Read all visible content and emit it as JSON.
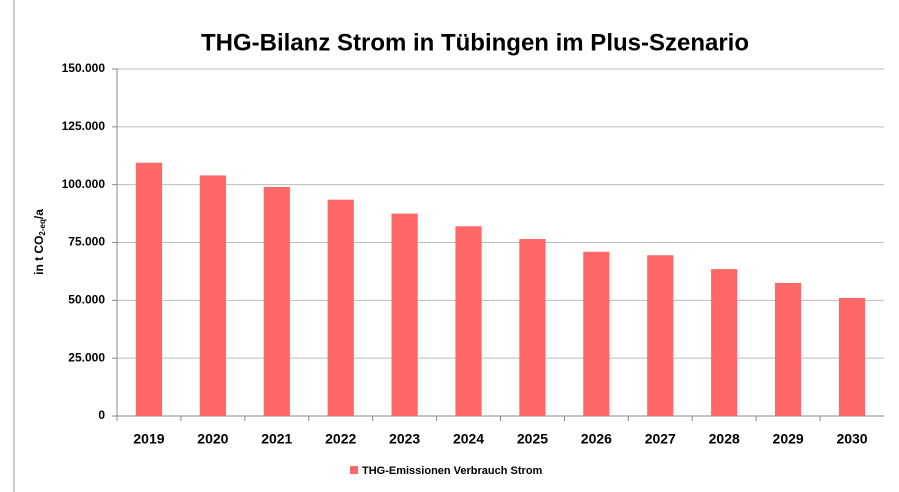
{
  "chart_data": {
    "type": "bar",
    "title": "THG-Bilanz Strom in Tübingen im Plus-Szenario",
    "y_label": {
      "main": "in t CO",
      "sub": "2-eq",
      "suffix": "/a"
    },
    "categories": [
      "2019",
      "2020",
      "2021",
      "2022",
      "2023",
      "2024",
      "2025",
      "2026",
      "2027",
      "2028",
      "2029",
      "2030"
    ],
    "series": [
      {
        "name": "THG-Emissionen Verbrauch Strom",
        "color": "#ff6666",
        "values": [
          109500,
          104000,
          99000,
          93500,
          87500,
          82000,
          76500,
          71000,
          69500,
          63500,
          57500,
          51000
        ]
      }
    ],
    "ylim": [
      0,
      150000
    ],
    "yticks": [
      0,
      {
        "value": 25000,
        "label": "25.000"
      },
      {
        "value": 50000,
        "label": "50.000"
      },
      {
        "value": 75000,
        "label": "75.000"
      },
      {
        "value": 100000,
        "label": "100.000"
      },
      {
        "value": 125000,
        "label": "125.000"
      },
      {
        "value": 150000,
        "label": "150.000"
      }
    ],
    "grid": true,
    "legend": "bottom"
  }
}
